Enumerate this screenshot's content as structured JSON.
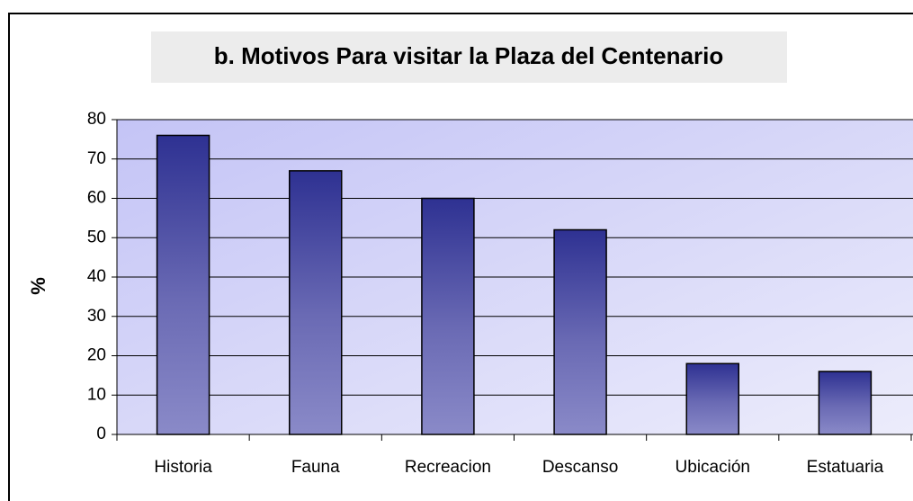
{
  "chart_data": {
    "type": "bar",
    "title": "b. Motivos Para visitar la Plaza del Centenario",
    "y_label": "%",
    "categories": [
      "Historia",
      "Fauna",
      "Recreacion",
      "Descanso",
      "Ubicación",
      "Estatuaria"
    ],
    "values": [
      76,
      67,
      60,
      52,
      18,
      16
    ],
    "color": "#2e3192",
    "ylim": [
      0,
      80
    ],
    "yticks": [
      0,
      10,
      20,
      30,
      40,
      50,
      60,
      70,
      80
    ],
    "grid": true
  }
}
